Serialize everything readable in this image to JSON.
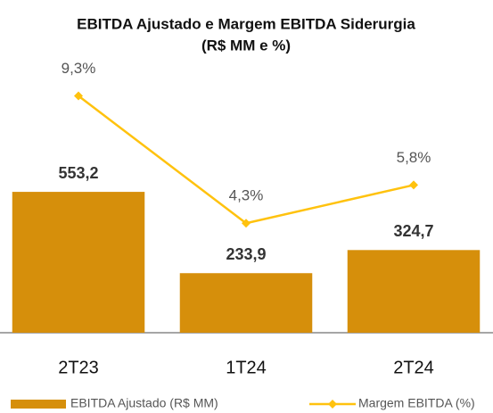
{
  "chart_data": {
    "type": "bar_line",
    "title": "EBITDA Ajustado e Margem EBITDA Siderurgia",
    "subtitle": "(R$ MM e %)",
    "categories": [
      "2T23",
      "1T24",
      "2T24"
    ],
    "series": [
      {
        "name": "EBITDA Ajustado (R$ MM)",
        "type": "bar",
        "color": "#d68f0b",
        "values": [
          553.2,
          233.9,
          324.7
        ],
        "value_labels": [
          "553,2",
          "233,9",
          "324,7"
        ]
      },
      {
        "name": "Margem EBITDA (%)",
        "type": "line",
        "axis": "y2",
        "color": "#ffc20e",
        "values": [
          9.3,
          4.3,
          5.8
        ],
        "value_labels": [
          "9,3%",
          "4,3%",
          "5,8%"
        ]
      }
    ],
    "ylim": [
      0,
      1100
    ],
    "y2lim": [
      0,
      11
    ],
    "legend": "bottom"
  }
}
